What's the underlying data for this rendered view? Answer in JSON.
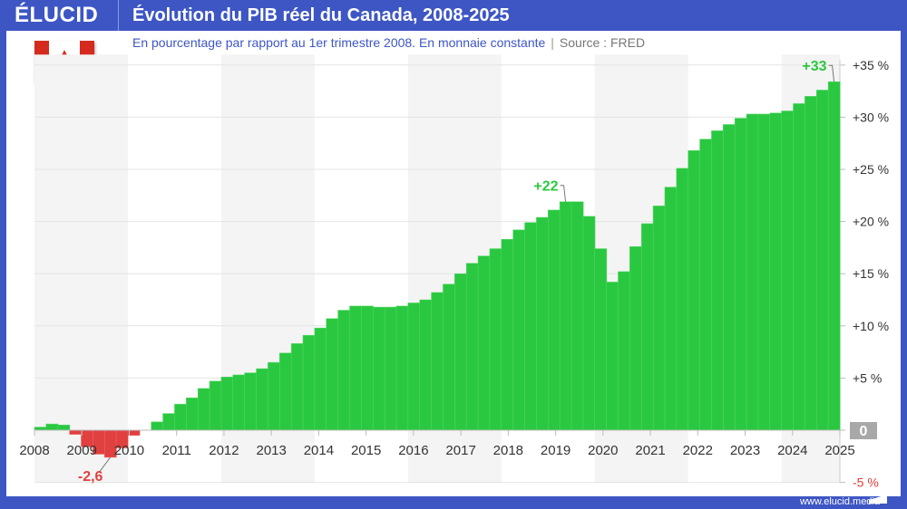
{
  "header": {
    "logo": "ÉLUCID",
    "title": "Évolution du PIB réel du Canada, 2008-2025"
  },
  "subtitle": {
    "text": "En pourcentage par rapport au 1er trimestre 2008. En monnaie constante",
    "source": "Source : FRED"
  },
  "footer": {
    "url": "www.elucid.media"
  },
  "flag": {
    "country": "Canada",
    "icon": "canada-flag-icon"
  },
  "colors": {
    "positive": "#2ac840",
    "negative": "#e0403f",
    "frame": "#3d56c4",
    "band": "#f4f4f4"
  },
  "chart_data": {
    "type": "bar",
    "title": "Évolution du PIB réel du Canada, 2008-2025",
    "ylabel": "",
    "xlabel": "",
    "frequency": "quarterly",
    "start": "2008 Q1",
    "x_ticks": [
      "2008",
      "2009",
      "2010",
      "2011",
      "2012",
      "2013",
      "2014",
      "2015",
      "2016",
      "2017",
      "2018",
      "2019",
      "2020",
      "2021",
      "2022",
      "2023",
      "2024",
      "2025"
    ],
    "y_ticks": [
      {
        "v": 35,
        "label": "+35 %"
      },
      {
        "v": 30,
        "label": "+30 %"
      },
      {
        "v": 25,
        "label": "+25 %"
      },
      {
        "v": 20,
        "label": "+20 %"
      },
      {
        "v": 15,
        "label": "+15 %"
      },
      {
        "v": 10,
        "label": "+10 %"
      },
      {
        "v": 5,
        "label": "+5 %"
      },
      {
        "v": 0,
        "label": "0"
      },
      {
        "v": -5,
        "label": "-5 %"
      }
    ],
    "ylim": [
      -5,
      35
    ],
    "grid": true,
    "values": [
      0.3,
      0.6,
      0.5,
      -0.4,
      -1.6,
      -2.3,
      -2.6,
      -1.7,
      -0.5,
      0.0,
      0.8,
      1.6,
      2.5,
      3.1,
      4.0,
      4.7,
      5.1,
      5.3,
      5.5,
      5.9,
      6.5,
      7.4,
      8.3,
      9.1,
      9.8,
      10.7,
      11.5,
      11.9,
      11.9,
      11.8,
      11.8,
      11.9,
      12.2,
      12.5,
      13.2,
      14.0,
      15.0,
      16.0,
      16.7,
      17.4,
      18.3,
      19.2,
      19.9,
      20.4,
      21.1,
      21.9,
      21.9,
      20.5,
      17.4,
      14.2,
      15.2,
      17.6,
      19.8,
      21.5,
      23.3,
      25.1,
      26.8,
      27.9,
      28.7,
      29.3,
      29.9,
      30.3,
      30.3,
      30.4,
      30.6,
      31.3,
      32.0,
      32.6,
      33.4
    ],
    "annotations": [
      {
        "index": 6,
        "label": "-2,6"
      },
      {
        "index": 45,
        "label": "+22"
      },
      {
        "index": 68,
        "label": "+33"
      }
    ]
  }
}
